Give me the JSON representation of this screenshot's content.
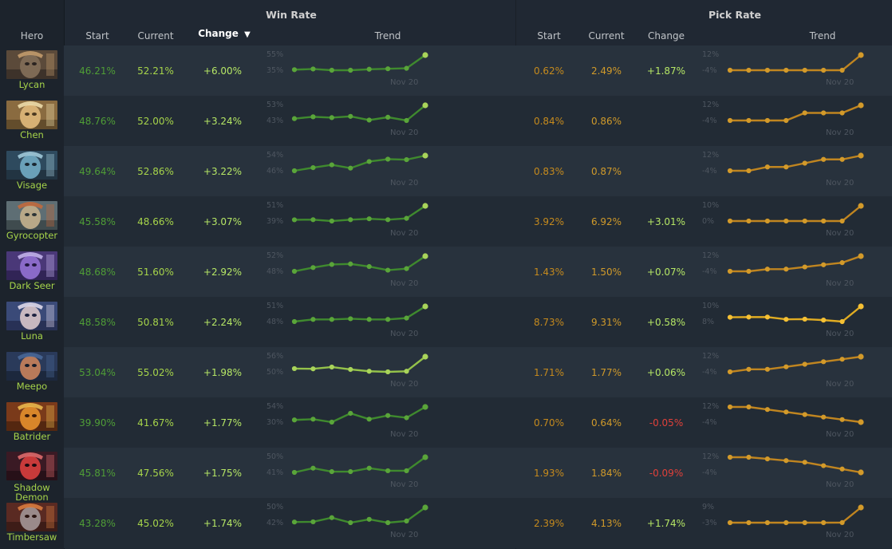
{
  "headers": {
    "hero": "Hero",
    "win_rate_group": "Win Rate",
    "pick_rate_group": "Pick Rate",
    "start": "Start",
    "current": "Current",
    "change": "Change",
    "trend": "Trend",
    "sort_indicator": "▼"
  },
  "colors": {
    "page_bg": "#202833",
    "row_bg_odd": "#28323d",
    "row_bg_even": "#222b35",
    "win_line": "#3f8a2e",
    "win_point": "#5aa53a",
    "win_last_point": "#a9d45a",
    "pick_line": "#c08520",
    "pick_point": "#d39a2a",
    "negative": "#e0403a"
  },
  "rows": [
    {
      "hero": "Lycan",
      "lines": [
        "Lycan"
      ],
      "portrait": {
        "bg": "#5b4a3a",
        "face": "#7e6a55",
        "accent": "#c9a070",
        "dark": "#2a2320"
      },
      "win": {
        "start": "46.21%",
        "current": "52.21%",
        "change": "+6.00%",
        "ymax_label": "55%",
        "ymin_label": "35%",
        "date": "Nov 20",
        "values": [
          46.21,
          46.5,
          46.0,
          46.0,
          46.4,
          46.6,
          46.8,
          52.21
        ],
        "highlight": true
      },
      "pick": {
        "start": "0.62%",
        "current": "2.49%",
        "change": "+1.87%",
        "change_type": "pos",
        "ymax_label": "12%",
        "ymin_label": "-4%",
        "date": "Nov 20",
        "values": [
          0.62,
          0.62,
          0.62,
          0.62,
          0.62,
          0.62,
          0.62,
          2.49
        ],
        "highlight": false
      }
    },
    {
      "hero": "Chen",
      "lines": [
        "Chen"
      ],
      "portrait": {
        "bg": "#8a6b40",
        "face": "#d6b074",
        "accent": "#f2e2b0",
        "dark": "#4a3820"
      },
      "win": {
        "start": "48.76%",
        "current": "52.00%",
        "change": "+3.24%",
        "ymax_label": "53%",
        "ymin_label": "43%",
        "date": "Nov 20",
        "values": [
          48.76,
          49.2,
          49.0,
          49.3,
          48.4,
          49.1,
          48.3,
          52.0
        ],
        "highlight": true
      },
      "pick": {
        "start": "0.84%",
        "current": "0.86%",
        "change": "",
        "change_type": "none",
        "ymax_label": "12%",
        "ymin_label": "-4%",
        "date": "Nov 20",
        "values": [
          0.84,
          0.84,
          0.84,
          0.84,
          0.85,
          0.85,
          0.85,
          0.86
        ],
        "highlight": false
      }
    },
    {
      "hero": "Visage",
      "lines": [
        "Visage"
      ],
      "portrait": {
        "bg": "#2e4a5e",
        "face": "#6aa0b8",
        "accent": "#a6d0e0",
        "dark": "#1a2630"
      },
      "win": {
        "start": "49.64%",
        "current": "52.86%",
        "change": "+3.22%",
        "ymax_label": "54%",
        "ymin_label": "46%",
        "date": "Nov 20",
        "values": [
          49.64,
          50.3,
          50.9,
          50.2,
          51.6,
          52.1,
          52.0,
          52.86
        ],
        "highlight": true
      },
      "pick": {
        "start": "0.83%",
        "current": "0.87%",
        "change": "",
        "change_type": "none",
        "ymax_label": "12%",
        "ymin_label": "-4%",
        "date": "Nov 20",
        "values": [
          0.83,
          0.83,
          0.84,
          0.84,
          0.85,
          0.86,
          0.86,
          0.87
        ],
        "highlight": false
      }
    },
    {
      "hero": "Gyrocopter",
      "lines": [
        "Gyrocopter"
      ],
      "portrait": {
        "bg": "#5e6e74",
        "face": "#b8a888",
        "accent": "#c86a3a",
        "dark": "#2c3436"
      },
      "win": {
        "start": "45.58%",
        "current": "48.66%",
        "change": "+3.07%",
        "ymax_label": "51%",
        "ymin_label": "39%",
        "date": "Nov 20",
        "values": [
          45.58,
          45.6,
          45.3,
          45.6,
          45.8,
          45.6,
          45.9,
          48.66
        ],
        "highlight": true
      },
      "pick": {
        "start": "3.92%",
        "current": "6.92%",
        "change": "+3.01%",
        "change_type": "pos",
        "ymax_label": "10%",
        "ymin_label": "0%",
        "date": "Nov 20",
        "values": [
          3.92,
          3.92,
          3.92,
          3.92,
          3.92,
          3.92,
          3.92,
          6.92
        ],
        "highlight": false
      }
    },
    {
      "hero": "Dark Seer",
      "lines": [
        "Dark Seer"
      ],
      "portrait": {
        "bg": "#4a3878",
        "face": "#8a6ac8",
        "accent": "#c8b8f0",
        "dark": "#221840"
      },
      "win": {
        "start": "48.68%",
        "current": "51.60%",
        "change": "+2.92%",
        "ymax_label": "52%",
        "ymin_label": "48%",
        "date": "Nov 20",
        "values": [
          48.68,
          49.4,
          50.0,
          50.1,
          49.6,
          48.9,
          49.2,
          51.6
        ],
        "highlight": true
      },
      "pick": {
        "start": "1.43%",
        "current": "1.50%",
        "change": "+0.07%",
        "change_type": "pos",
        "ymax_label": "12%",
        "ymin_label": "-4%",
        "date": "Nov 20",
        "values": [
          1.43,
          1.43,
          1.44,
          1.44,
          1.45,
          1.46,
          1.47,
          1.5
        ],
        "highlight": false
      }
    },
    {
      "hero": "Luna",
      "lines": [
        "Luna"
      ],
      "portrait": {
        "bg": "#3a4a78",
        "face": "#c8b8c0",
        "accent": "#e8e0f0",
        "dark": "#1c2240"
      },
      "win": {
        "start": "48.58%",
        "current": "50.81%",
        "change": "+2.24%",
        "ymax_label": "51%",
        "ymin_label": "48%",
        "date": "Nov 20",
        "values": [
          48.58,
          48.9,
          48.9,
          49.0,
          48.9,
          48.9,
          49.1,
          50.81
        ],
        "highlight": true
      },
      "pick": {
        "start": "8.73%",
        "current": "9.31%",
        "change": "+0.58%",
        "change_type": "pos",
        "ymax_label": "10%",
        "ymin_label": "8%",
        "date": "Nov 20",
        "values": [
          8.73,
          8.74,
          8.74,
          8.62,
          8.63,
          8.58,
          8.5,
          9.31
        ],
        "highlight": true
      },
      "pick_bright": true
    },
    {
      "hero": "Meepo",
      "lines": [
        "Meepo"
      ],
      "portrait": {
        "bg": "#2a3a5a",
        "face": "#b87a5a",
        "accent": "#4a6a9a",
        "dark": "#141c2a"
      },
      "win": {
        "start": "53.04%",
        "current": "55.02%",
        "change": "+1.98%",
        "ymax_label": "56%",
        "ymin_label": "50%",
        "date": "Nov 20",
        "values": [
          53.04,
          53.0,
          53.3,
          52.9,
          52.6,
          52.5,
          52.6,
          55.02
        ],
        "highlight": false,
        "bright": true
      },
      "pick": {
        "start": "1.71%",
        "current": "1.77%",
        "change": "+0.06%",
        "change_type": "pos",
        "ymax_label": "12%",
        "ymin_label": "-4%",
        "date": "Nov 20",
        "values": [
          1.71,
          1.72,
          1.72,
          1.73,
          1.74,
          1.75,
          1.76,
          1.77
        ],
        "highlight": false
      }
    },
    {
      "hero": "Batrider",
      "lines": [
        "Batrider"
      ],
      "portrait": {
        "bg": "#7a3a1a",
        "face": "#d8862a",
        "accent": "#f0c050",
        "dark": "#3a1a0a"
      },
      "win": {
        "start": "39.90%",
        "current": "41.67%",
        "change": "+1.77%",
        "ymax_label": "54%",
        "ymin_label": "30%",
        "date": "Nov 20",
        "values": [
          39.9,
          40.0,
          39.6,
          40.8,
          40.0,
          40.5,
          40.2,
          41.67
        ],
        "highlight": false
      },
      "pick": {
        "start": "0.70%",
        "current": "0.64%",
        "change": "-0.05%",
        "change_type": "neg",
        "ymax_label": "12%",
        "ymin_label": "-4%",
        "date": "Nov 20",
        "values": [
          0.7,
          0.7,
          0.69,
          0.68,
          0.67,
          0.66,
          0.65,
          0.64
        ],
        "highlight": false
      }
    },
    {
      "hero": "Shadow Demon",
      "lines": [
        "Shadow",
        "Demon"
      ],
      "portrait": {
        "bg": "#3a1a24",
        "face": "#c83a3a",
        "accent": "#e87070",
        "dark": "#1a0a10"
      },
      "win": {
        "start": "45.81%",
        "current": "47.56%",
        "change": "+1.75%",
        "ymax_label": "50%",
        "ymin_label": "41%",
        "date": "Nov 20",
        "values": [
          45.81,
          46.3,
          45.9,
          45.9,
          46.3,
          46.0,
          46.0,
          47.56
        ],
        "highlight": false
      },
      "pick": {
        "start": "1.93%",
        "current": "1.84%",
        "change": "-0.09%",
        "change_type": "neg",
        "ymax_label": "12%",
        "ymin_label": "-4%",
        "date": "Nov 20",
        "values": [
          1.93,
          1.93,
          1.92,
          1.91,
          1.9,
          1.88,
          1.86,
          1.84
        ],
        "highlight": false
      }
    },
    {
      "hero": "Timbersaw",
      "lines": [
        "Timbersaw"
      ],
      "portrait": {
        "bg": "#5a2a22",
        "face": "#9a8a8a",
        "accent": "#e08040",
        "dark": "#2a1410"
      },
      "win": {
        "start": "43.28%",
        "current": "45.02%",
        "change": "+1.74%",
        "ymax_label": "50%",
        "ymin_label": "42%",
        "date": "Nov 20",
        "values": [
          43.28,
          43.3,
          43.8,
          43.2,
          43.6,
          43.2,
          43.4,
          45.02
        ],
        "highlight": false
      },
      "pick": {
        "start": "2.39%",
        "current": "4.13%",
        "change": "+1.74%",
        "change_type": "pos",
        "ymax_label": "9%",
        "ymin_label": "-3%",
        "date": "Nov 20",
        "values": [
          2.39,
          2.39,
          2.39,
          2.39,
          2.39,
          2.39,
          2.4,
          4.13
        ],
        "highlight": false
      }
    }
  ]
}
